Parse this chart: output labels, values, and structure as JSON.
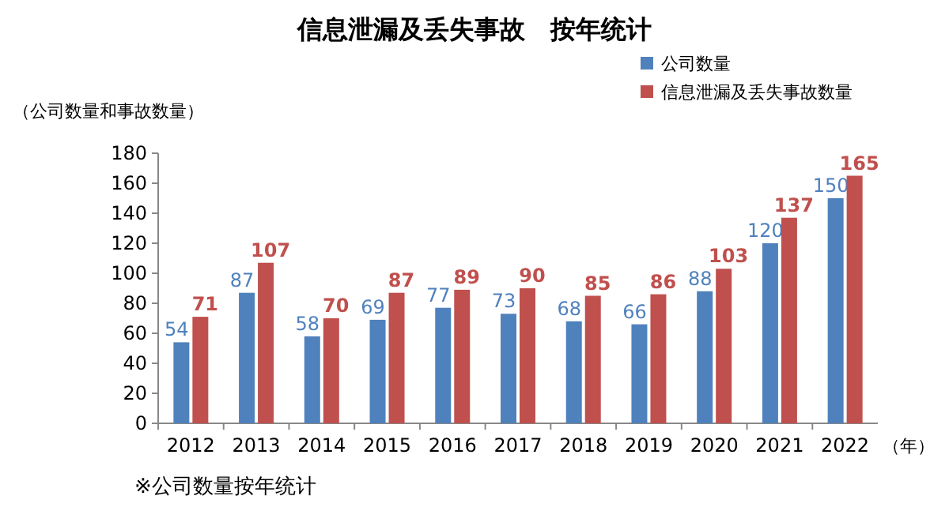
{
  "chart_data": {
    "type": "bar",
    "title": "信息泄漏及丢失事故　按年统计",
    "ylabel": "（公司数量和事故数量）",
    "xlabel": "（年）",
    "categories": [
      "2012",
      "2013",
      "2014",
      "2015",
      "2016",
      "2017",
      "2018",
      "2019",
      "2020",
      "2021",
      "2022"
    ],
    "series": [
      {
        "name": "公司数量",
        "color": "#4f81bd",
        "values": [
          54,
          87,
          58,
          69,
          77,
          73,
          68,
          66,
          88,
          120,
          150
        ]
      },
      {
        "name": "信息泄漏及丢失事故数量",
        "color": "#c0504d",
        "values": [
          71,
          107,
          70,
          87,
          89,
          90,
          85,
          86,
          103,
          137,
          165
        ]
      }
    ],
    "ylim": [
      0,
      180
    ],
    "yticks": [
      0,
      20,
      40,
      60,
      80,
      100,
      120,
      140,
      160,
      180
    ],
    "data_labels": true,
    "legend": "top right",
    "annotations": [
      "※公司数量按年统计"
    ]
  }
}
